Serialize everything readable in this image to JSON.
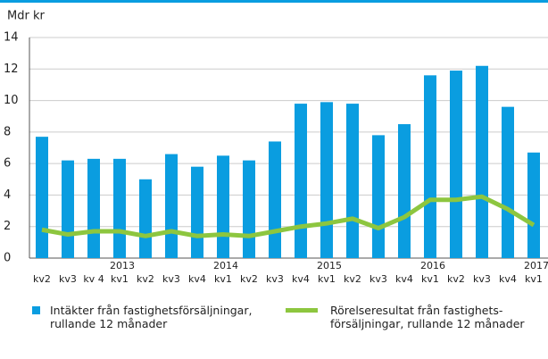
{
  "chart_data": {
    "type": "bar_line",
    "y_label": "Mdr kr",
    "categories": [
      "kv2",
      "kv3",
      "kv 4",
      "kv1",
      "kv2",
      "kv3",
      "kv4",
      "kv1",
      "kv2",
      "kv3",
      "kv4",
      "kv1",
      "kv2",
      "kv3",
      "kv4",
      "kv1",
      "kv2",
      "kv3",
      "kv4",
      "kv1"
    ],
    "year_labels": [
      null,
      null,
      null,
      "2013",
      null,
      null,
      null,
      "2014",
      null,
      null,
      null,
      "2015",
      null,
      null,
      null,
      "2016",
      null,
      null,
      null,
      "2017"
    ],
    "series": [
      {
        "name": "Intäkter från fastighetsförsäljningar,\nrullande 12 månader",
        "type": "bar",
        "color": "#0a9de0",
        "values": [
          7.7,
          6.2,
          6.3,
          6.3,
          5.0,
          6.6,
          5.8,
          6.5,
          6.2,
          7.4,
          9.8,
          9.9,
          9.8,
          7.8,
          8.5,
          11.6,
          11.9,
          12.2,
          9.6,
          6.7
        ]
      },
      {
        "name": "Rörelseresultat från fastighets-\nförsäljningar, rullande 12 månader",
        "type": "line",
        "color": "#8dc63f",
        "values": [
          1.8,
          1.5,
          1.7,
          1.7,
          1.4,
          1.7,
          1.4,
          1.5,
          1.4,
          1.7,
          2.0,
          2.2,
          2.5,
          1.9,
          2.6,
          3.7,
          3.7,
          3.9,
          3.1,
          2.1
        ]
      }
    ],
    "ylim": [
      0,
      14
    ],
    "yticks": [
      0,
      2,
      4,
      6,
      8,
      10,
      12,
      14
    ],
    "grid": true
  }
}
